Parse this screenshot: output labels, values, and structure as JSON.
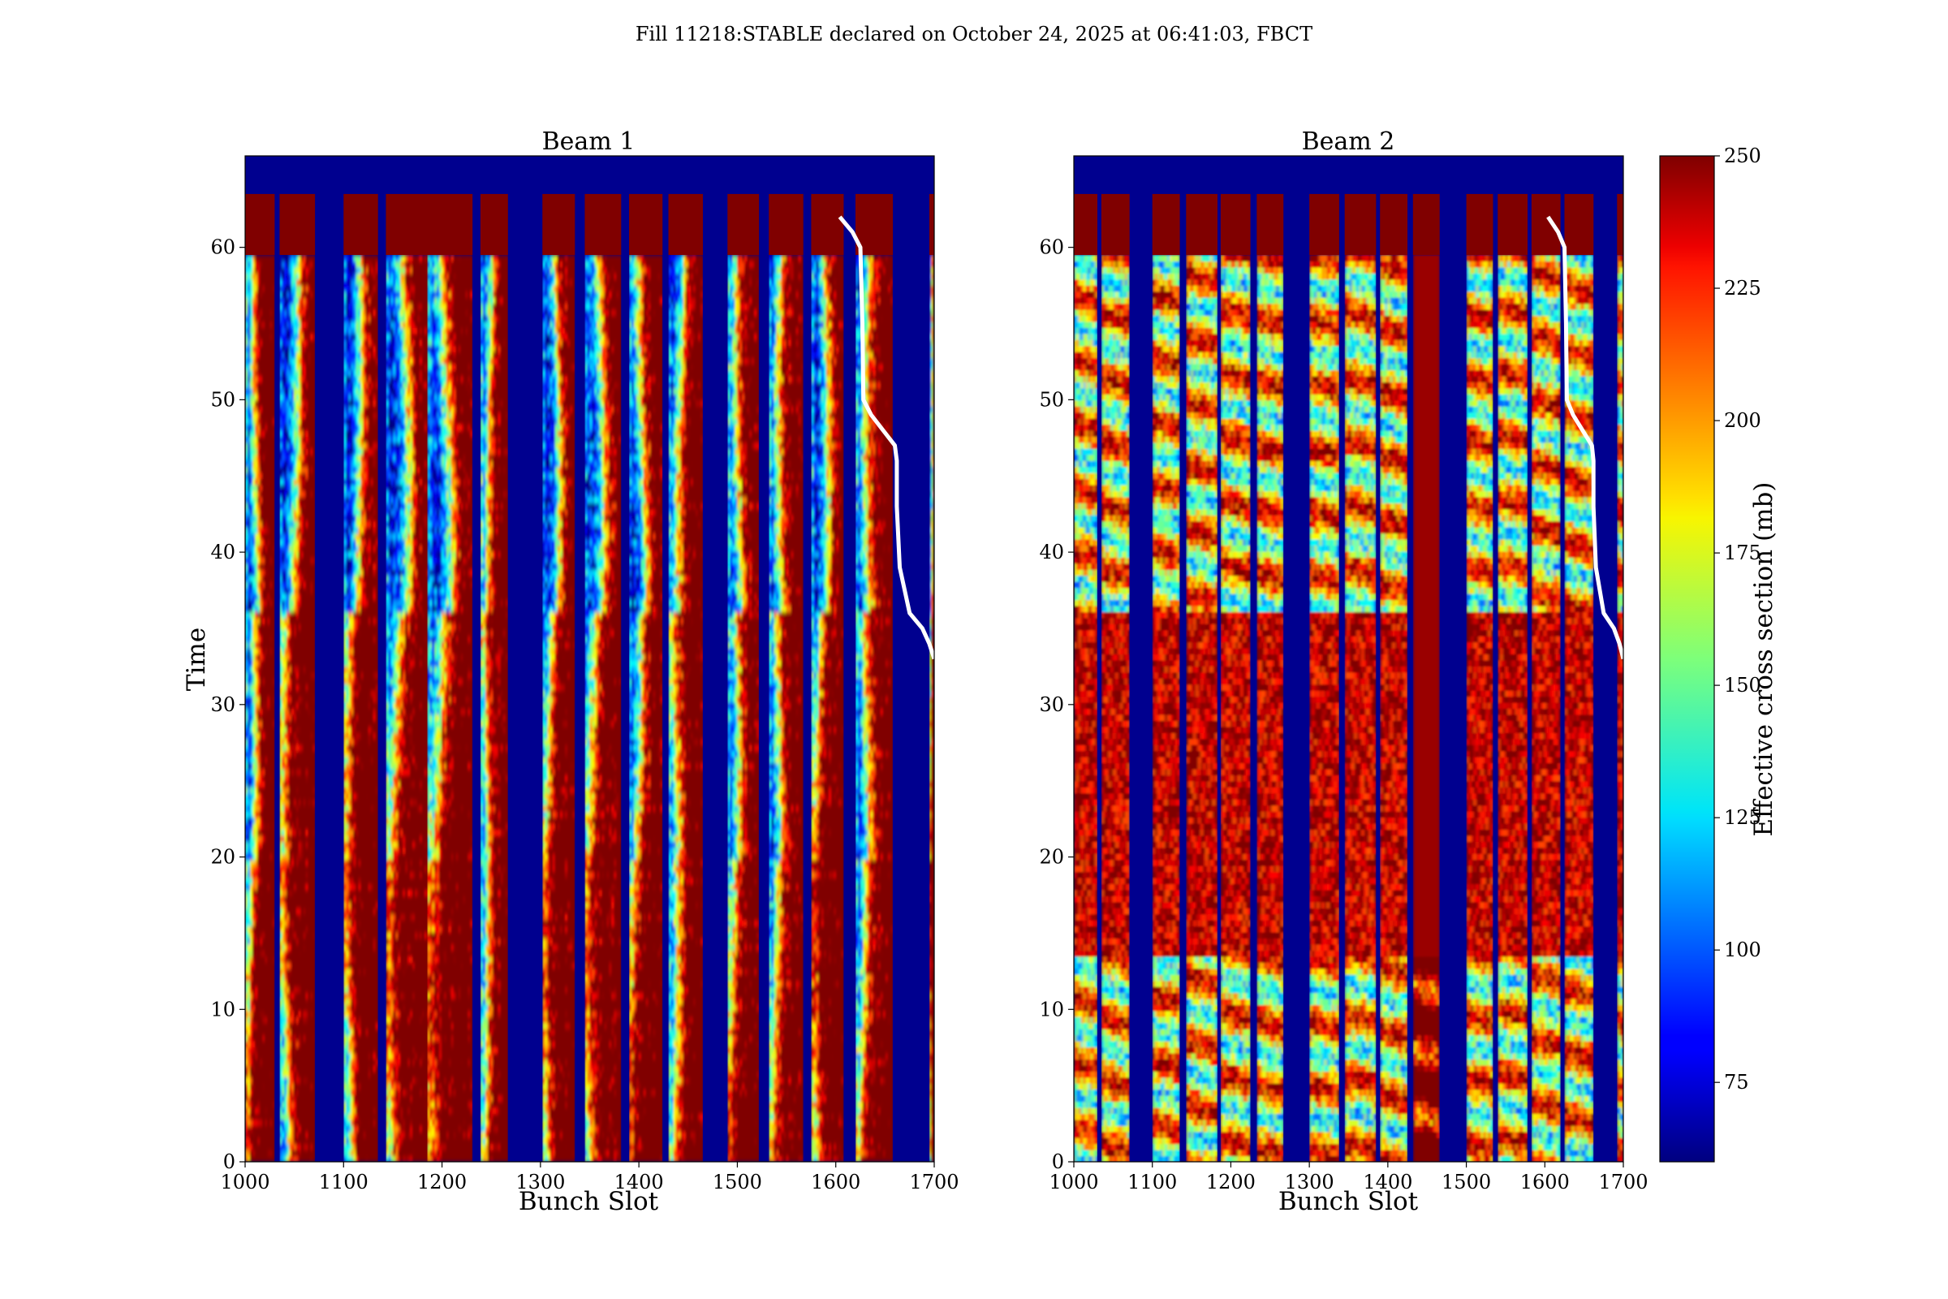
{
  "figure": {
    "title": "Fill 11218:STABLE declared on October 24, 2025 at 06:41:03, FBCT"
  },
  "chart_data": [
    {
      "type": "heatmap",
      "title": "Beam 1",
      "xlabel": "Bunch Slot",
      "ylabel": "Time",
      "xlim": [
        1000,
        1700
      ],
      "ylim": [
        0,
        66
      ],
      "xticks": [
        "1000",
        "1100",
        "1200",
        "1300",
        "1400",
        "1500",
        "1600",
        "1700"
      ],
      "yticks": [
        "0",
        "10",
        "20",
        "30",
        "40",
        "50",
        "60"
      ],
      "bunch_trains": [
        [
          1000,
          1030
        ],
        [
          1035,
          1071
        ],
        [
          1100,
          1135
        ],
        [
          1143,
          1187
        ],
        [
          1185,
          1231
        ],
        [
          1239,
          1267
        ],
        [
          1302,
          1335
        ],
        [
          1345,
          1382
        ],
        [
          1390,
          1424
        ],
        [
          1430,
          1465
        ],
        [
          1490,
          1522
        ],
        [
          1532,
          1567
        ],
        [
          1575,
          1608
        ],
        [
          1620,
          1658
        ],
        [
          1695,
          1700
        ]
      ],
      "data_region_time": [
        0,
        59.5
      ],
      "saturated_band_time": [
        59.5,
        63.5
      ],
      "empty_band_time": [
        63.5,
        66
      ],
      "pattern": "drift",
      "overlay_line": {
        "color": "#ffffff",
        "x": [
          1700,
          1695,
          1688,
          1675,
          1665,
          1662,
          1662,
          1660,
          1648,
          1636,
          1628,
          1627,
          1625,
          1617,
          1604
        ],
        "y": [
          33,
          34,
          35,
          36,
          39,
          43,
          46,
          47,
          48,
          49,
          50,
          55,
          60,
          61,
          62
        ]
      }
    },
    {
      "type": "heatmap",
      "title": "Beam 2",
      "xlabel": "Bunch Slot",
      "ylabel": "",
      "xlim": [
        1000,
        1700
      ],
      "ylim": [
        0,
        66
      ],
      "xticks": [
        "1000",
        "1100",
        "1200",
        "1300",
        "1400",
        "1500",
        "1600",
        "1700"
      ],
      "yticks": [
        "0",
        "10",
        "20",
        "30",
        "40",
        "50",
        "60"
      ],
      "bunch_trains": [
        [
          1000,
          1030
        ],
        [
          1035,
          1071
        ],
        [
          1100,
          1135
        ],
        [
          1143,
          1183
        ],
        [
          1187,
          1225
        ],
        [
          1233,
          1267
        ],
        [
          1300,
          1338
        ],
        [
          1345,
          1385
        ],
        [
          1390,
          1425
        ],
        [
          1432,
          1466
        ],
        [
          1500,
          1534
        ],
        [
          1540,
          1578
        ],
        [
          1583,
          1620
        ],
        [
          1625,
          1662
        ],
        [
          1692,
          1700
        ]
      ],
      "data_region_time": [
        0,
        59.5
      ],
      "saturated_band_time": [
        59.5,
        63.5
      ],
      "empty_band_time": [
        63.5,
        66
      ],
      "high_block_time": [
        13.5,
        36
      ],
      "pattern": "horizontal",
      "overlay_line": {
        "color": "#ffffff",
        "x": [
          1700,
          1695,
          1688,
          1675,
          1665,
          1662,
          1662,
          1660,
          1648,
          1636,
          1628,
          1627,
          1625,
          1617,
          1604
        ],
        "y": [
          33,
          34,
          35,
          36,
          39,
          43,
          46,
          47,
          48,
          49,
          50,
          55,
          60,
          61,
          62
        ]
      }
    }
  ],
  "colorbar": {
    "label": "Effective cross section (mb)",
    "min": 60,
    "max": 250,
    "ticks": [
      "75",
      "100",
      "125",
      "150",
      "175",
      "200",
      "225",
      "250"
    ],
    "colormap": "jet",
    "gap_color": "#00008f",
    "saturated_color": "#800000"
  }
}
